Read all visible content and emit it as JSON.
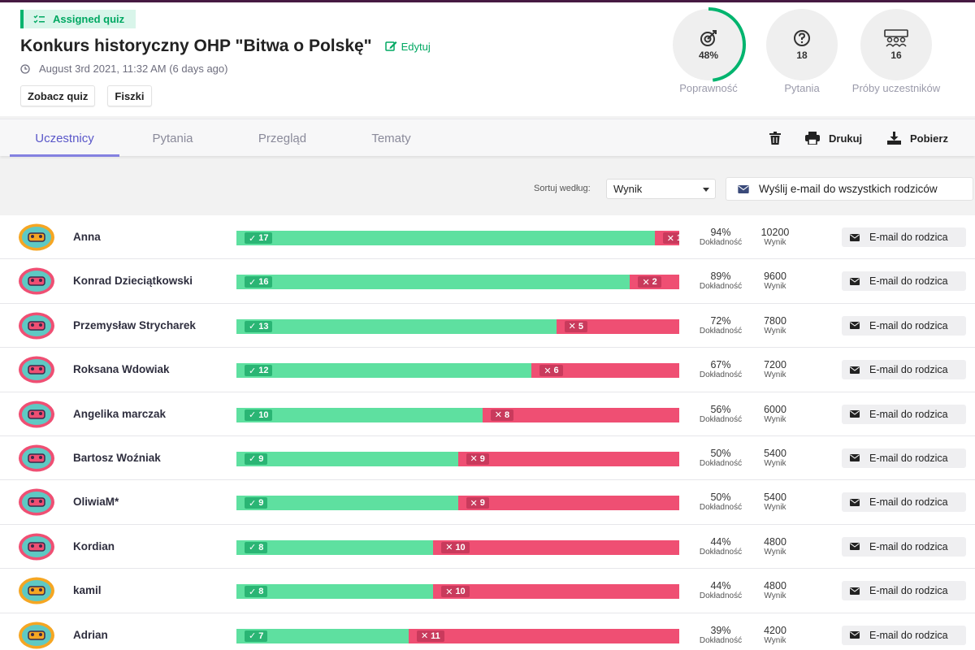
{
  "header": {
    "badge_label": "Assigned quiz",
    "title": "Konkurs historyczny OHP \"Bitwa o Polskę\"",
    "edit_label": "Edytuj",
    "date": "August 3rd 2021, 11:32 AM (6 days ago)",
    "buttons": {
      "view_quiz": "Zobacz quiz",
      "flashcards": "Fiszki"
    }
  },
  "stats": {
    "accuracy": {
      "value": "48%",
      "label": "Poprawność",
      "fraction": 0.48
    },
    "questions": {
      "value": "18",
      "label": "Pytania"
    },
    "attempts": {
      "value": "16",
      "label": "Próby uczestników"
    }
  },
  "tabs": [
    {
      "label": "Uczestnicy",
      "active": true
    },
    {
      "label": "Pytania",
      "active": false
    },
    {
      "label": "Przegląd",
      "active": false
    },
    {
      "label": "Tematy",
      "active": false
    }
  ],
  "toolbar": {
    "print_label": "Drukuj",
    "download_label": "Pobierz"
  },
  "sort": {
    "label": "Sortuj według:",
    "selected": "Wynik"
  },
  "email_all_label": "Wyślij e-mail do wszystkich rodziców",
  "row_labels": {
    "accuracy": "Dokładność",
    "score": "Wynik",
    "email_parent": "E-mail do rodzica"
  },
  "participants": [
    {
      "name": "Anna",
      "correct": "17",
      "wrong": "1",
      "accuracy": "94%",
      "score": "10200"
    },
    {
      "name": "Konrad Dzieciątkowski",
      "correct": "16",
      "wrong": "2",
      "accuracy": "89%",
      "score": "9600"
    },
    {
      "name": "Przemysław Strycharek",
      "correct": "13",
      "wrong": "5",
      "accuracy": "72%",
      "score": "7800"
    },
    {
      "name": "Roksana Wdowiak",
      "correct": "12",
      "wrong": "6",
      "accuracy": "67%",
      "score": "7200"
    },
    {
      "name": "Angelika marczak",
      "correct": "10",
      "wrong": "8",
      "accuracy": "56%",
      "score": "6000"
    },
    {
      "name": "Bartosz Woźniak",
      "correct": "9",
      "wrong": "9",
      "accuracy": "50%",
      "score": "5400"
    },
    {
      "name": "OliwiaM*",
      "correct": "9",
      "wrong": "9",
      "accuracy": "50%",
      "score": "5400"
    },
    {
      "name": "Kordian",
      "correct": "8",
      "wrong": "10",
      "accuracy": "44%",
      "score": "4800"
    },
    {
      "name": "kamil",
      "correct": "8",
      "wrong": "10",
      "accuracy": "44%",
      "score": "4800"
    },
    {
      "name": "Adrian",
      "correct": "7",
      "wrong": "11",
      "accuracy": "39%",
      "score": "4200"
    }
  ],
  "colors": {
    "correct": "#5ee0a0",
    "wrong": "#ef4f73",
    "accent": "#8481e0",
    "brand_green": "#00b46e"
  },
  "avatar_colors": [
    "#f5a623",
    "#ef4f73",
    "#ef4f73",
    "#ef4f73",
    "#ef4f73",
    "#ef4f73",
    "#ef4f73",
    "#ef4f73",
    "#f5a623",
    "#f5a623"
  ]
}
